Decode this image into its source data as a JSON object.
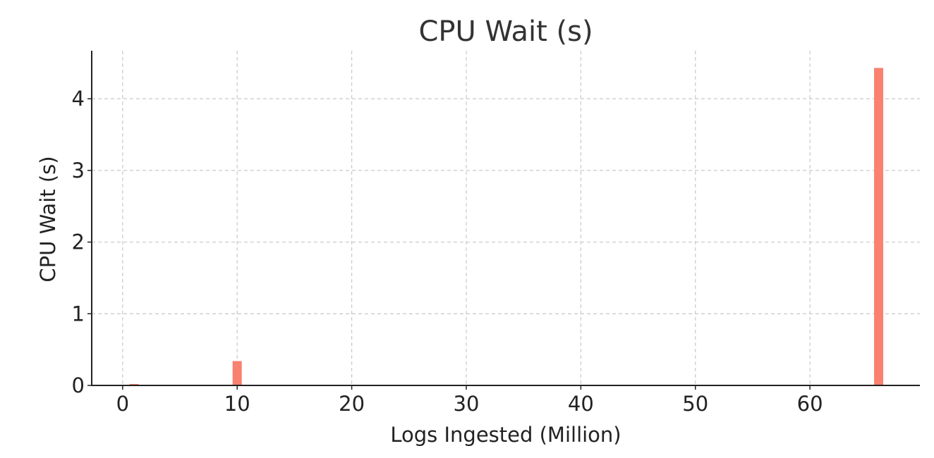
{
  "chart_data": {
    "type": "bar",
    "title": "CPU Wait (s)",
    "xlabel": "Logs Ingested (Million)",
    "ylabel": "CPU Wait (s)",
    "x": [
      1,
      10,
      66
    ],
    "values": [
      0.02,
      0.34,
      4.43
    ],
    "bar_width": 0.8,
    "xlim": [
      -2.7,
      69.6
    ],
    "ylim": [
      0,
      4.67
    ],
    "xticks": [
      0,
      10,
      20,
      30,
      40,
      50,
      60
    ],
    "yticks": [
      0,
      1,
      2,
      3,
      4
    ],
    "grid": true,
    "legend": "none",
    "bar_color": "#f88170",
    "grid_color": "#c8c8c8",
    "axis_color": "#222222"
  }
}
